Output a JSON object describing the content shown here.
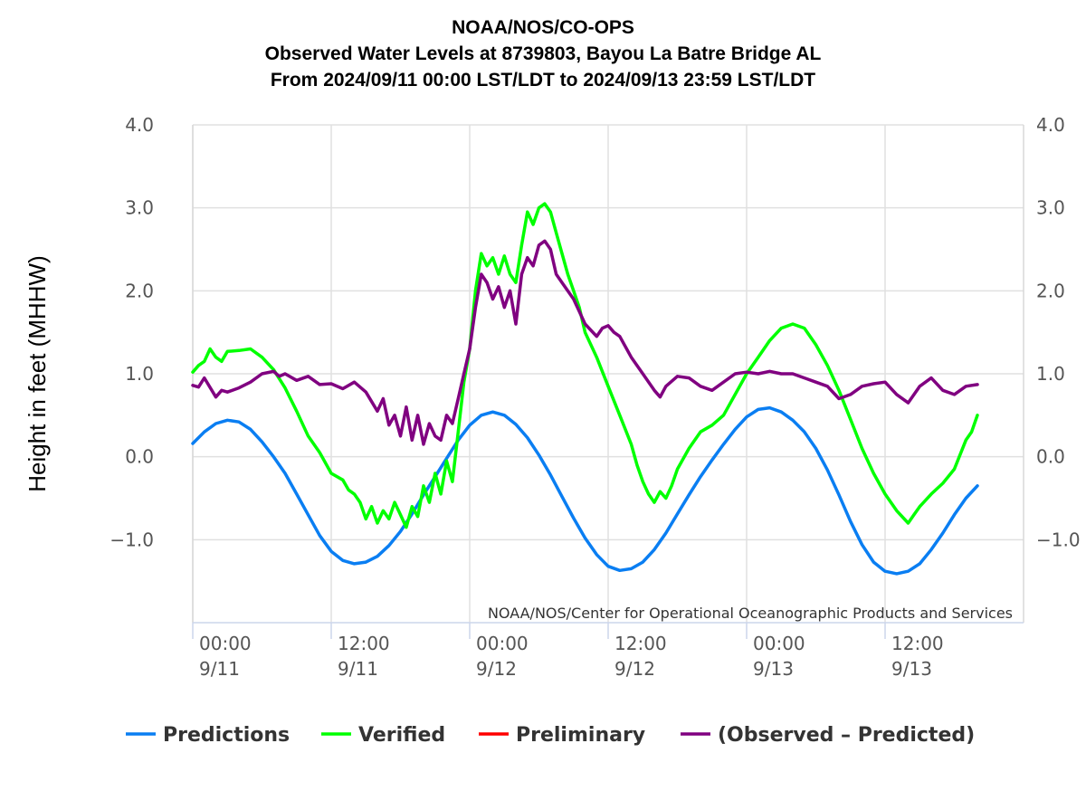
{
  "title": {
    "line1": "NOAA/NOS/CO-OPS",
    "line2": "Observed Water Levels at 8739803, Bayou La Batre Bridge AL",
    "line3": "From 2024/09/11 00:00 LST/LDT to 2024/09/13 23:59 LST/LDT"
  },
  "credit": "NOAA/NOS/Center for Operational Oceanographic Products and Services",
  "chart_data": {
    "type": "line",
    "ylabel": "Height in feet (MHHW)",
    "xlabel": "",
    "ylim": [
      -2.0,
      4.0
    ],
    "xlim_hours": [
      0,
      72
    ],
    "yticks": [
      {
        "value": 4.0,
        "label": "4.0"
      },
      {
        "value": 3.0,
        "label": "3.0"
      },
      {
        "value": 2.0,
        "label": "2.0"
      },
      {
        "value": 1.0,
        "label": "1.0"
      },
      {
        "value": 0.0,
        "label": "0.0"
      },
      {
        "value": -1.0,
        "label": "−1.0"
      }
    ],
    "xticks": [
      {
        "hour": 0,
        "time": "00:00",
        "date": "9/11"
      },
      {
        "hour": 12,
        "time": "12:00",
        "date": "9/11"
      },
      {
        "hour": 24,
        "time": "00:00",
        "date": "9/12"
      },
      {
        "hour": 36,
        "time": "12:00",
        "date": "9/12"
      },
      {
        "hour": 48,
        "time": "00:00",
        "date": "9/13"
      },
      {
        "hour": 60,
        "time": "12:00",
        "date": "9/13"
      }
    ],
    "grid": true,
    "legend_position": "bottom",
    "series": [
      {
        "name": "Predictions",
        "color": "#0a7ef2",
        "points": [
          [
            0,
            0.16
          ],
          [
            1,
            0.3
          ],
          [
            2,
            0.4
          ],
          [
            3,
            0.44
          ],
          [
            4,
            0.42
          ],
          [
            5,
            0.33
          ],
          [
            6,
            0.18
          ],
          [
            7,
            0.0
          ],
          [
            8,
            -0.2
          ],
          [
            9,
            -0.45
          ],
          [
            10,
            -0.7
          ],
          [
            11,
            -0.95
          ],
          [
            12,
            -1.14
          ],
          [
            13,
            -1.25
          ],
          [
            14,
            -1.29
          ],
          [
            15,
            -1.27
          ],
          [
            16,
            -1.2
          ],
          [
            17,
            -1.07
          ],
          [
            18,
            -0.9
          ],
          [
            19,
            -0.69
          ],
          [
            20,
            -0.46
          ],
          [
            21,
            -0.24
          ],
          [
            22,
            -0.02
          ],
          [
            23,
            0.2
          ],
          [
            24,
            0.38
          ],
          [
            25,
            0.5
          ],
          [
            26,
            0.54
          ],
          [
            27,
            0.5
          ],
          [
            28,
            0.39
          ],
          [
            29,
            0.23
          ],
          [
            30,
            0.02
          ],
          [
            31,
            -0.22
          ],
          [
            32,
            -0.48
          ],
          [
            33,
            -0.74
          ],
          [
            34,
            -0.98
          ],
          [
            35,
            -1.18
          ],
          [
            36,
            -1.32
          ],
          [
            37,
            -1.37
          ],
          [
            38,
            -1.35
          ],
          [
            39,
            -1.27
          ],
          [
            40,
            -1.12
          ],
          [
            41,
            -0.92
          ],
          [
            42,
            -0.69
          ],
          [
            43,
            -0.46
          ],
          [
            44,
            -0.24
          ],
          [
            45,
            -0.04
          ],
          [
            46,
            0.15
          ],
          [
            47,
            0.33
          ],
          [
            48,
            0.48
          ],
          [
            49,
            0.57
          ],
          [
            50,
            0.59
          ],
          [
            51,
            0.54
          ],
          [
            52,
            0.44
          ],
          [
            53,
            0.3
          ],
          [
            54,
            0.1
          ],
          [
            55,
            -0.16
          ],
          [
            56,
            -0.46
          ],
          [
            57,
            -0.78
          ],
          [
            58,
            -1.06
          ],
          [
            59,
            -1.27
          ],
          [
            60,
            -1.38
          ],
          [
            61,
            -1.41
          ],
          [
            62,
            -1.38
          ],
          [
            63,
            -1.29
          ],
          [
            64,
            -1.12
          ],
          [
            65,
            -0.92
          ],
          [
            66,
            -0.7
          ],
          [
            67,
            -0.5
          ],
          [
            68,
            -0.35
          ]
        ]
      },
      {
        "name": "Verified",
        "color": "#00ff00",
        "points": [
          [
            0,
            1.02
          ],
          [
            0.5,
            1.1
          ],
          [
            1,
            1.15
          ],
          [
            1.5,
            1.3
          ],
          [
            2,
            1.2
          ],
          [
            2.5,
            1.15
          ],
          [
            3,
            1.27
          ],
          [
            4,
            1.28
          ],
          [
            5,
            1.3
          ],
          [
            6,
            1.2
          ],
          [
            7,
            1.05
          ],
          [
            8,
            0.83
          ],
          [
            9,
            0.55
          ],
          [
            10,
            0.25
          ],
          [
            11,
            0.05
          ],
          [
            12,
            -0.2
          ],
          [
            13,
            -0.28
          ],
          [
            13.5,
            -0.4
          ],
          [
            14,
            -0.45
          ],
          [
            14.5,
            -0.55
          ],
          [
            15,
            -0.75
          ],
          [
            15.5,
            -0.6
          ],
          [
            16,
            -0.8
          ],
          [
            16.5,
            -0.65
          ],
          [
            17,
            -0.75
          ],
          [
            17.5,
            -0.55
          ],
          [
            18,
            -0.7
          ],
          [
            18.5,
            -0.85
          ],
          [
            19,
            -0.6
          ],
          [
            19.5,
            -0.72
          ],
          [
            20,
            -0.35
          ],
          [
            20.5,
            -0.55
          ],
          [
            21,
            -0.2
          ],
          [
            21.5,
            -0.45
          ],
          [
            22,
            -0.05
          ],
          [
            22.5,
            -0.3
          ],
          [
            23,
            0.3
          ],
          [
            23.5,
            0.9
          ],
          [
            24,
            1.3
          ],
          [
            24.5,
            2.0
          ],
          [
            25,
            2.45
          ],
          [
            25.5,
            2.3
          ],
          [
            26,
            2.4
          ],
          [
            26.5,
            2.2
          ],
          [
            27,
            2.42
          ],
          [
            27.5,
            2.2
          ],
          [
            28,
            2.1
          ],
          [
            28.5,
            2.55
          ],
          [
            29,
            2.95
          ],
          [
            29.5,
            2.8
          ],
          [
            30,
            3.0
          ],
          [
            30.5,
            3.05
          ],
          [
            31,
            2.95
          ],
          [
            31.5,
            2.7
          ],
          [
            32,
            2.45
          ],
          [
            32.5,
            2.2
          ],
          [
            33,
            2.0
          ],
          [
            33.5,
            1.8
          ],
          [
            34,
            1.5
          ],
          [
            35,
            1.2
          ],
          [
            36,
            0.85
          ],
          [
            37,
            0.5
          ],
          [
            38,
            0.15
          ],
          [
            38.5,
            -0.1
          ],
          [
            39,
            -0.3
          ],
          [
            39.5,
            -0.45
          ],
          [
            40,
            -0.55
          ],
          [
            40.5,
            -0.42
          ],
          [
            41,
            -0.5
          ],
          [
            41.5,
            -0.35
          ],
          [
            42,
            -0.15
          ],
          [
            43,
            0.1
          ],
          [
            44,
            0.3
          ],
          [
            45,
            0.38
          ],
          [
            46,
            0.5
          ],
          [
            47,
            0.75
          ],
          [
            48,
            1.0
          ],
          [
            49,
            1.2
          ],
          [
            50,
            1.4
          ],
          [
            51,
            1.55
          ],
          [
            52,
            1.6
          ],
          [
            53,
            1.55
          ],
          [
            54,
            1.35
          ],
          [
            55,
            1.1
          ],
          [
            56,
            0.8
          ],
          [
            57,
            0.45
          ],
          [
            58,
            0.1
          ],
          [
            59,
            -0.2
          ],
          [
            60,
            -0.45
          ],
          [
            61,
            -0.65
          ],
          [
            62,
            -0.8
          ],
          [
            62.5,
            -0.7
          ],
          [
            63,
            -0.6
          ],
          [
            64,
            -0.45
          ],
          [
            65,
            -0.32
          ],
          [
            66,
            -0.15
          ],
          [
            67,
            0.2
          ],
          [
            67.5,
            0.3
          ],
          [
            68,
            0.5
          ]
        ]
      },
      {
        "name": "Preliminary",
        "color": "#ff0000",
        "points": []
      },
      {
        "name": "(Observed - Predicted)",
        "color": "#800080",
        "points": [
          [
            0,
            0.86
          ],
          [
            0.5,
            0.84
          ],
          [
            1,
            0.95
          ],
          [
            2,
            0.72
          ],
          [
            2.5,
            0.8
          ],
          [
            3,
            0.78
          ],
          [
            4,
            0.83
          ],
          [
            5,
            0.9
          ],
          [
            6,
            1.0
          ],
          [
            7,
            1.03
          ],
          [
            7.5,
            0.97
          ],
          [
            8,
            1.0
          ],
          [
            9,
            0.92
          ],
          [
            10,
            0.97
          ],
          [
            11,
            0.87
          ],
          [
            12,
            0.88
          ],
          [
            13,
            0.82
          ],
          [
            14,
            0.9
          ],
          [
            15,
            0.78
          ],
          [
            16,
            0.55
          ],
          [
            16.5,
            0.7
          ],
          [
            17,
            0.38
          ],
          [
            17.5,
            0.5
          ],
          [
            18,
            0.25
          ],
          [
            18.5,
            0.6
          ],
          [
            19,
            0.2
          ],
          [
            19.5,
            0.5
          ],
          [
            20,
            0.15
          ],
          [
            20.5,
            0.4
          ],
          [
            21,
            0.25
          ],
          [
            21.5,
            0.2
          ],
          [
            22,
            0.5
          ],
          [
            22.5,
            0.4
          ],
          [
            23,
            0.7
          ],
          [
            23.5,
            1.0
          ],
          [
            24,
            1.3
          ],
          [
            24.5,
            1.8
          ],
          [
            25,
            2.2
          ],
          [
            25.5,
            2.1
          ],
          [
            26,
            1.9
          ],
          [
            26.5,
            2.05
          ],
          [
            27,
            1.8
          ],
          [
            27.5,
            2.0
          ],
          [
            28,
            1.6
          ],
          [
            28.5,
            2.2
          ],
          [
            29,
            2.4
          ],
          [
            29.5,
            2.3
          ],
          [
            30,
            2.55
          ],
          [
            30.5,
            2.6
          ],
          [
            31,
            2.5
          ],
          [
            31.5,
            2.2
          ],
          [
            32,
            2.1
          ],
          [
            33,
            1.9
          ],
          [
            34,
            1.6
          ],
          [
            35,
            1.45
          ],
          [
            35.5,
            1.55
          ],
          [
            36,
            1.58
          ],
          [
            36.5,
            1.5
          ],
          [
            37,
            1.45
          ],
          [
            38,
            1.2
          ],
          [
            39,
            1.0
          ],
          [
            40,
            0.8
          ],
          [
            40.5,
            0.72
          ],
          [
            41,
            0.85
          ],
          [
            42,
            0.97
          ],
          [
            43,
            0.95
          ],
          [
            44,
            0.85
          ],
          [
            45,
            0.8
          ],
          [
            46,
            0.9
          ],
          [
            47,
            1.0
          ],
          [
            48,
            1.02
          ],
          [
            49,
            1.0
          ],
          [
            50,
            1.03
          ],
          [
            51,
            1.0
          ],
          [
            52,
            1.0
          ],
          [
            53,
            0.95
          ],
          [
            54,
            0.9
          ],
          [
            55,
            0.85
          ],
          [
            56,
            0.7
          ],
          [
            57,
            0.75
          ],
          [
            58,
            0.85
          ],
          [
            59,
            0.88
          ],
          [
            60,
            0.9
          ],
          [
            61,
            0.75
          ],
          [
            62,
            0.65
          ],
          [
            63,
            0.85
          ],
          [
            64,
            0.95
          ],
          [
            65,
            0.8
          ],
          [
            66,
            0.75
          ],
          [
            67,
            0.85
          ],
          [
            68,
            0.87
          ]
        ]
      }
    ]
  }
}
